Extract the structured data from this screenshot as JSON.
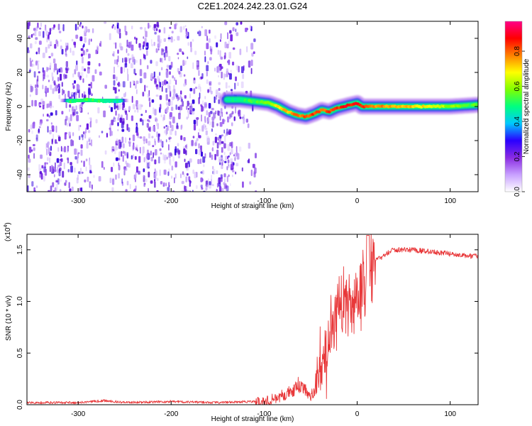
{
  "title": "C2E1.2024.242.23.01.G24",
  "chart_data": [
    {
      "type": "heatmap",
      "title": "C2E1.2024.242.23.01.G24",
      "xlabel": "Height of straight line (km)",
      "ylabel": "Frequency (Hz)",
      "xlim": [
        -355,
        130
      ],
      "ylim": [
        -50,
        50
      ],
      "xticks": [
        -300,
        -200,
        -100,
        0,
        100
      ],
      "xtick_labels": [
        "-300",
        "-200",
        "-100",
        "0",
        "100"
      ],
      "yticks": [
        -40,
        -20,
        0,
        20,
        40
      ],
      "ytick_labels": [
        "-40",
        "-20",
        "0",
        "20",
        "40"
      ],
      "colorbar": {
        "label": "Normalized spectral amplitude",
        "range": [
          0,
          0.97
        ],
        "ticks": [
          0.0,
          0.2,
          0.4,
          0.6,
          0.8
        ],
        "tick_labels": [
          "0.0",
          "0.2",
          "0.4",
          "0.6",
          "0.8"
        ],
        "colormap": [
          "#ffffff",
          "#c8a0ff",
          "#8a2be2",
          "#2a00ff",
          "#00c8ff",
          "#00ff80",
          "#80ff00",
          "#ffff00",
          "#ff8000",
          "#ff0000",
          "#ff0088"
        ]
      },
      "noise_region_km": [
        -355,
        -110
      ],
      "frequency_ridge": {
        "x": [
          -310,
          -290,
          -270,
          -255,
          -140,
          -125,
          -110,
          -95,
          -85,
          -75,
          -65,
          -55,
          -45,
          -38,
          -30,
          -22,
          -15,
          -8,
          0,
          5,
          20,
          60,
          100,
          130
        ],
        "freq_hz": [
          3,
          4,
          3,
          3,
          4,
          4,
          3,
          2,
          0,
          -3,
          -5,
          -6,
          -4,
          -2,
          -3,
          -1,
          0,
          1,
          2,
          0,
          0,
          0,
          0,
          1
        ],
        "amplitude": [
          0.5,
          0.55,
          0.5,
          0.45,
          0.45,
          0.5,
          0.55,
          0.6,
          0.7,
          0.75,
          0.8,
          0.85,
          0.85,
          0.8,
          0.85,
          0.85,
          0.9,
          0.9,
          0.9,
          0.85,
          0.8,
          0.75,
          0.6,
          0.55
        ]
      }
    },
    {
      "type": "line",
      "xlabel": "Height of straight line (km)",
      "ylabel": "SNR (10 * v/v)",
      "scale_label": "(x10",
      "scale_exponent": "4",
      "scale_close": ")",
      "xlim": [
        -355,
        130
      ],
      "ylim": [
        0,
        1.65
      ],
      "xticks": [
        -300,
        -200,
        -100,
        0,
        100
      ],
      "xtick_labels": [
        "-300",
        "-200",
        "-100",
        "0",
        "100"
      ],
      "yticks": [
        0,
        0.5,
        1.0,
        1.5
      ],
      "ytick_labels": [
        "0.0",
        "0.5",
        "1.0",
        "1.5"
      ],
      "line_color": "#e8383a",
      "series": [
        {
          "name": "SNR",
          "x": [
            -355,
            -300,
            -270,
            -250,
            -200,
            -150,
            -120,
            -100,
            -90,
            -80,
            -70,
            -62,
            -56,
            -52,
            -48,
            -44,
            -40,
            -36,
            -32,
            -28,
            -24,
            -20,
            -16,
            -12,
            -8,
            -4,
            0,
            4,
            8,
            12,
            16,
            20,
            25,
            30,
            35,
            40,
            50,
            60,
            70,
            80,
            90,
            100,
            110,
            120,
            130
          ],
          "y": [
            0.02,
            0.02,
            0.04,
            0.02,
            0.03,
            0.02,
            0.03,
            0.03,
            0.06,
            0.09,
            0.14,
            0.2,
            0.14,
            0.08,
            0.1,
            0.18,
            0.3,
            0.45,
            0.62,
            0.78,
            0.85,
            0.95,
            1.0,
            0.95,
            1.05,
            1.02,
            1.0,
            1.05,
            1.2,
            1.35,
            1.38,
            1.4,
            1.42,
            1.45,
            1.48,
            1.5,
            1.5,
            1.5,
            1.49,
            1.48,
            1.47,
            1.46,
            1.45,
            1.44,
            1.44
          ]
        }
      ]
    }
  ]
}
